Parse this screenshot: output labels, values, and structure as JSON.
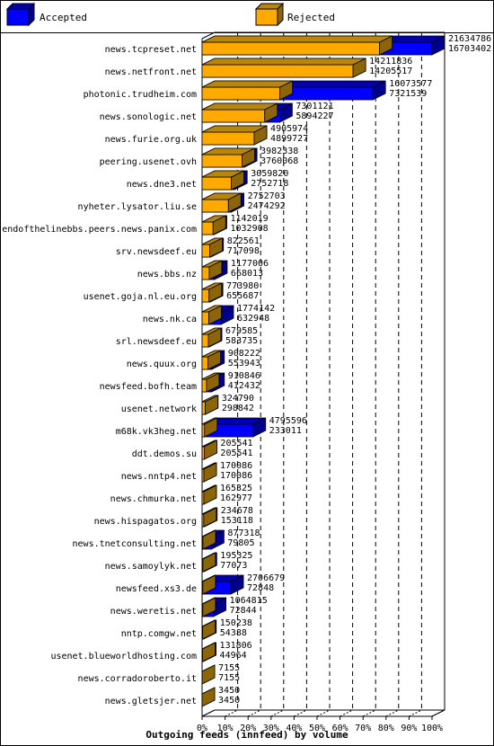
{
  "chart_data": {
    "type": "bar",
    "orientation": "horizontal",
    "stacked": false,
    "xlabel": "Outgoing feeds (innfeed) by volume",
    "x_ticks": [
      "0%",
      "10%",
      "20%",
      "30%",
      "40%",
      "50%",
      "60%",
      "70%",
      "80%",
      "90%",
      "100%"
    ],
    "xlim": [
      0,
      100
    ],
    "legend_position": "top",
    "colors": {
      "accepted": "#0000ff",
      "rejected": "#ffaa00"
    },
    "series": [
      {
        "name": "Accepted",
        "values": [
          21634786,
          14211836,
          16073577,
          7301121,
          4905974,
          3982338,
          3059820,
          2752703,
          1142019,
          822561,
          1177006,
          773980,
          1774142,
          679585,
          908222,
          910846,
          324790,
          4795596,
          205541,
          170086,
          165325,
          234678,
          877318,
          195325,
          2706679,
          1064815,
          150238,
          131806,
          7155,
          3450
        ]
      },
      {
        "name": "Rejected",
        "values": [
          16703402,
          14205517,
          7321539,
          5894227,
          4899727,
          3760068,
          2752718,
          2474292,
          1032908,
          717098,
          668013,
          655687,
          632948,
          583735,
          553943,
          412432,
          298842,
          233011,
          205541,
          170086,
          162977,
          153118,
          79805,
          77073,
          72848,
          72844,
          54388,
          44964,
          7155,
          3450
        ]
      }
    ],
    "categories": [
      "news.tcpreset.net",
      "news.netfront.net",
      "photonic.trudheim.com",
      "news.sonologic.net",
      "news.furie.org.uk",
      "peering.usenet.ovh",
      "news.dne3.net",
      "nyheter.lysator.liu.se",
      "endofthelinebbs.peers.news.panix.com",
      "srv.newsdeef.eu",
      "news.bbs.nz",
      "usenet.goja.nl.eu.org",
      "news.nk.ca",
      "srl.newsdeef.eu",
      "news.quux.org",
      "newsfeed.bofh.team",
      "usenet.network",
      "m68k.vk3heg.net",
      "ddt.demos.su",
      "news.nntp4.net",
      "news.chmurka.net",
      "news.hispagatos.org",
      "news.tnetconsulting.net",
      "news.samoylyk.net",
      "newsfeed.xs3.de",
      "news.weretis.net",
      "nntp.comgw.net",
      "usenet.blueworldhosting.com",
      "news.corradoroberto.it",
      "news.gletsjer.net"
    ]
  }
}
